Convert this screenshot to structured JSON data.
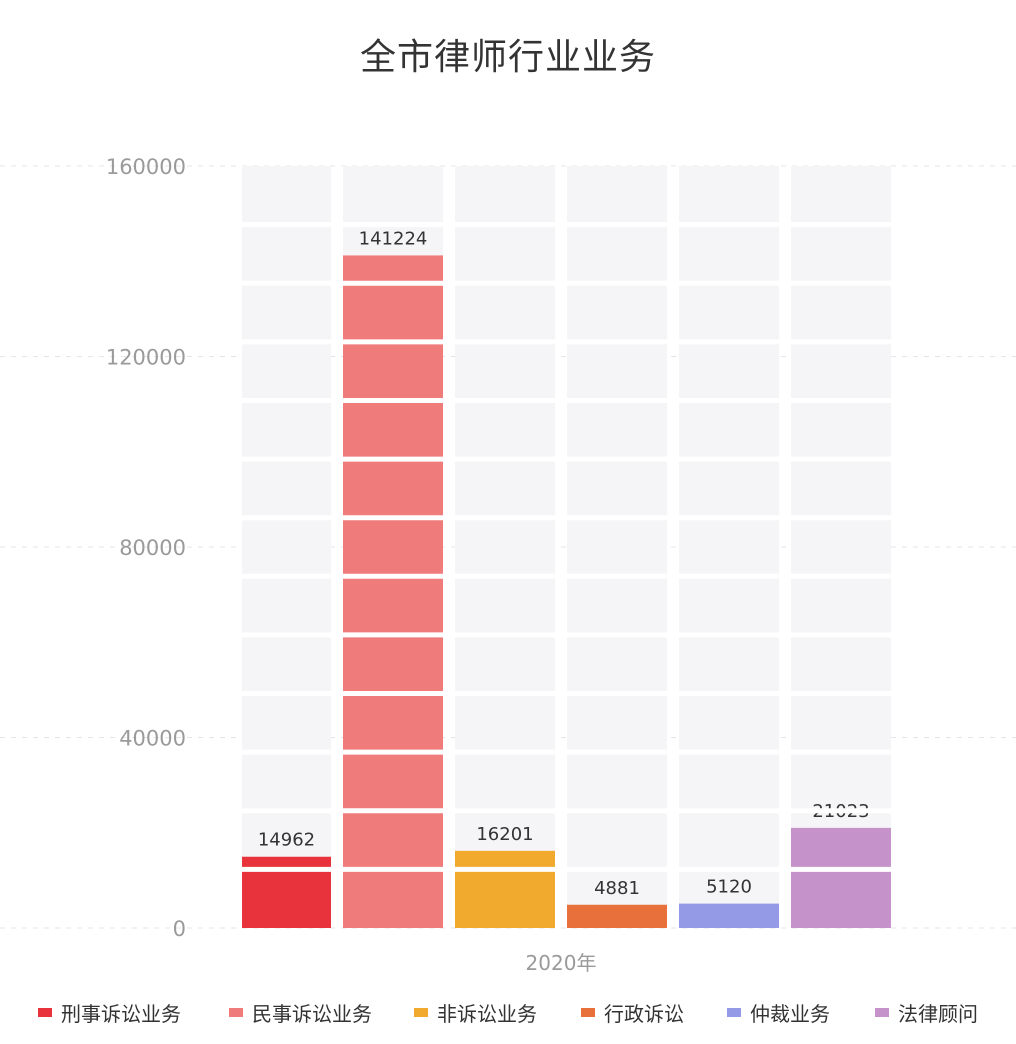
{
  "chart_data": {
    "type": "bar",
    "title": "全市律师行业业务",
    "categories": [
      "2020年"
    ],
    "series": [
      {
        "name": "刑事诉讼业务",
        "values": [
          14962
        ],
        "color": "#e8323c"
      },
      {
        "name": "民事诉讼业务",
        "values": [
          141224
        ],
        "color": "#f07b7b"
      },
      {
        "name": "非诉讼业务",
        "values": [
          16201
        ],
        "color": "#f2aa2e"
      },
      {
        "name": "行政诉讼",
        "values": [
          4881
        ],
        "color": "#e8703a"
      },
      {
        "name": "仲裁业务",
        "values": [
          5120
        ],
        "color": "#949ae6"
      },
      {
        "name": "法律顾问",
        "values": [
          21023
        ],
        "color": "#c592c9"
      }
    ],
    "data_labels": [
      "14962",
      "141224",
      "16201",
      "4881",
      "5120",
      "21023"
    ],
    "y_ticks": [
      0,
      40000,
      80000,
      120000,
      160000
    ],
    "y_tick_labels": [
      "0",
      "40000",
      "80000",
      "120000",
      "160000"
    ],
    "ylim": [
      0,
      160000
    ],
    "x_tick_label": "2020年",
    "grid": true,
    "legend_position": "bottom",
    "background_bar_color": "#f5f5f7"
  }
}
